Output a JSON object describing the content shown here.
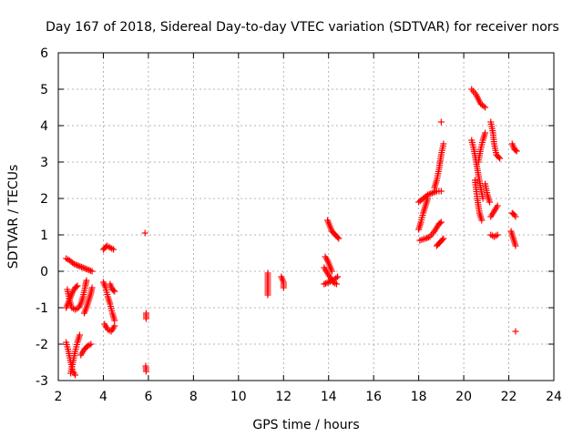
{
  "chart_data": {
    "type": "scatter",
    "title": "Day 167 of 2018, Sidereal Day-to-day VTEC variation (SDTVAR) for receiver nors",
    "xlabel": "GPS time / hours",
    "ylabel": "SDTVAR / TECUs",
    "xlim": [
      2,
      24
    ],
    "ylim": [
      -3,
      6
    ],
    "xticks": [
      "2",
      "4",
      "6",
      "8",
      "10",
      "12",
      "14",
      "16",
      "18",
      "20",
      "22",
      "24"
    ],
    "yticks": [
      "-3",
      "-2",
      "-1",
      "0",
      "1",
      "2",
      "3",
      "4",
      "5",
      "6"
    ],
    "grid": true,
    "marker": "+",
    "color": "#ff0000",
    "series": [
      {
        "name": "SDTVAR",
        "segments": [
          [
            [
              2.35,
              0.35
            ],
            [
              2.5,
              0.3
            ],
            [
              2.7,
              0.2
            ],
            [
              2.9,
              0.15
            ],
            [
              3.1,
              0.1
            ],
            [
              3.3,
              0.05
            ],
            [
              3.5,
              0.0
            ]
          ],
          [
            [
              2.4,
              -0.5
            ],
            [
              2.5,
              -0.8
            ],
            [
              2.6,
              -1.0
            ],
            [
              2.75,
              -1.05
            ],
            [
              2.9,
              -1.0
            ],
            [
              3.0,
              -0.9
            ],
            [
              3.1,
              -0.7
            ],
            [
              3.2,
              -0.4
            ],
            [
              3.25,
              -0.25
            ]
          ],
          [
            [
              2.35,
              -1.0
            ],
            [
              2.45,
              -0.85
            ],
            [
              2.55,
              -0.7
            ],
            [
              2.65,
              -0.55
            ],
            [
              2.75,
              -0.45
            ],
            [
              2.85,
              -0.4
            ]
          ],
          [
            [
              3.15,
              -1.15
            ],
            [
              3.25,
              -1.0
            ],
            [
              3.35,
              -0.8
            ],
            [
              3.45,
              -0.6
            ],
            [
              3.5,
              -0.45
            ]
          ],
          [
            [
              2.35,
              -1.95
            ],
            [
              2.45,
              -2.2
            ],
            [
              2.55,
              -2.5
            ],
            [
              2.65,
              -2.75
            ],
            [
              2.75,
              -2.85
            ]
          ],
          [
            [
              2.55,
              -2.8
            ],
            [
              2.65,
              -2.5
            ],
            [
              2.75,
              -2.2
            ],
            [
              2.85,
              -1.95
            ],
            [
              2.95,
              -1.75
            ]
          ],
          [
            [
              3.0,
              -2.3
            ],
            [
              3.15,
              -2.15
            ],
            [
              3.3,
              -2.05
            ],
            [
              3.45,
              -2.0
            ]
          ],
          [
            [
              4.0,
              0.6
            ],
            [
              4.15,
              0.7
            ],
            [
              4.3,
              0.65
            ],
            [
              4.45,
              0.6
            ]
          ],
          [
            [
              4.0,
              -0.3
            ],
            [
              4.1,
              -0.45
            ],
            [
              4.2,
              -0.7
            ],
            [
              4.3,
              -0.9
            ],
            [
              4.4,
              -1.15
            ],
            [
              4.5,
              -1.35
            ]
          ],
          [
            [
              4.05,
              -1.45
            ],
            [
              4.2,
              -1.6
            ],
            [
              4.35,
              -1.65
            ],
            [
              4.5,
              -1.5
            ]
          ],
          [
            [
              4.3,
              -0.35
            ],
            [
              4.4,
              -0.5
            ],
            [
              4.5,
              -0.55
            ]
          ],
          [
            [
              5.85,
              1.05
            ]
          ],
          [
            [
              5.9,
              -1.15
            ],
            [
              5.9,
              -1.3
            ]
          ],
          [
            [
              5.88,
              -2.6
            ],
            [
              5.9,
              -2.75
            ]
          ],
          [
            [
              11.3,
              -0.05
            ],
            [
              11.3,
              -0.25
            ],
            [
              11.3,
              -0.45
            ],
            [
              11.3,
              -0.65
            ]
          ],
          [
            [
              11.9,
              -0.15
            ],
            [
              12.0,
              -0.3
            ],
            [
              12.0,
              -0.45
            ]
          ],
          [
            [
              13.8,
              -0.35
            ],
            [
              14.0,
              -0.3
            ],
            [
              14.2,
              -0.25
            ],
            [
              14.4,
              -0.15
            ]
          ],
          [
            [
              13.8,
              0.1
            ],
            [
              13.9,
              0.0
            ],
            [
              14.0,
              -0.1
            ],
            [
              14.1,
              -0.2
            ],
            [
              14.2,
              -0.3
            ],
            [
              14.35,
              -0.35
            ]
          ],
          [
            [
              13.85,
              0.4
            ],
            [
              13.95,
              0.3
            ],
            [
              14.05,
              0.15
            ],
            [
              14.15,
              0.0
            ]
          ],
          [
            [
              13.95,
              1.4
            ],
            [
              14.05,
              1.25
            ],
            [
              14.15,
              1.1
            ],
            [
              14.3,
              1.0
            ],
            [
              14.45,
              0.9
            ]
          ],
          [
            [
              18.0,
              1.9
            ],
            [
              18.2,
              2.0
            ],
            [
              18.4,
              2.1
            ],
            [
              18.6,
              2.15
            ],
            [
              18.8,
              2.2
            ],
            [
              19.0,
              2.2
            ]
          ],
          [
            [
              18.0,
              1.15
            ],
            [
              18.1,
              1.35
            ],
            [
              18.2,
              1.6
            ],
            [
              18.3,
              1.8
            ],
            [
              18.4,
              2.0
            ]
          ],
          [
            [
              18.05,
              0.85
            ],
            [
              18.3,
              0.9
            ],
            [
              18.5,
              0.95
            ],
            [
              18.7,
              1.1
            ],
            [
              18.9,
              1.3
            ],
            [
              19.0,
              1.35
            ]
          ],
          [
            [
              18.7,
              2.3
            ],
            [
              18.8,
              2.5
            ],
            [
              18.9,
              2.8
            ],
            [
              19.0,
              3.2
            ],
            [
              19.1,
              3.5
            ]
          ],
          [
            [
              18.8,
              0.7
            ],
            [
              18.95,
              0.8
            ],
            [
              19.1,
              0.9
            ]
          ],
          [
            [
              19.0,
              4.1
            ]
          ],
          [
            [
              20.35,
              5.0
            ],
            [
              20.55,
              4.85
            ],
            [
              20.75,
              4.6
            ],
            [
              20.95,
              4.5
            ]
          ],
          [
            [
              20.35,
              3.6
            ],
            [
              20.45,
              3.35
            ],
            [
              20.55,
              3.0
            ],
            [
              20.65,
              2.65
            ],
            [
              20.75,
              2.3
            ],
            [
              20.85,
              2.0
            ]
          ],
          [
            [
              20.5,
              2.5
            ],
            [
              20.6,
              2.0
            ],
            [
              20.7,
              1.6
            ],
            [
              20.8,
              1.4
            ]
          ],
          [
            [
              20.65,
              3.0
            ],
            [
              20.75,
              3.35
            ],
            [
              20.85,
              3.6
            ],
            [
              20.95,
              3.8
            ]
          ],
          [
            [
              20.95,
              2.4
            ],
            [
              21.05,
              2.1
            ],
            [
              21.15,
              1.9
            ]
          ],
          [
            [
              21.2,
              4.1
            ],
            [
              21.3,
              3.8
            ],
            [
              21.35,
              3.5
            ],
            [
              21.45,
              3.2
            ],
            [
              21.6,
              3.1
            ]
          ],
          [
            [
              21.2,
              1.5
            ],
            [
              21.35,
              1.65
            ],
            [
              21.5,
              1.8
            ]
          ],
          [
            [
              21.2,
              1.0
            ],
            [
              21.35,
              0.95
            ],
            [
              21.5,
              1.0
            ]
          ],
          [
            [
              22.15,
              3.5
            ],
            [
              22.25,
              3.35
            ],
            [
              22.35,
              3.3
            ]
          ],
          [
            [
              22.15,
              1.6
            ],
            [
              22.25,
              1.55
            ],
            [
              22.3,
              1.5
            ]
          ],
          [
            [
              22.1,
              1.1
            ],
            [
              22.2,
              0.9
            ],
            [
              22.3,
              0.7
            ]
          ],
          [
            [
              22.3,
              -1.65
            ]
          ]
        ]
      }
    ]
  }
}
